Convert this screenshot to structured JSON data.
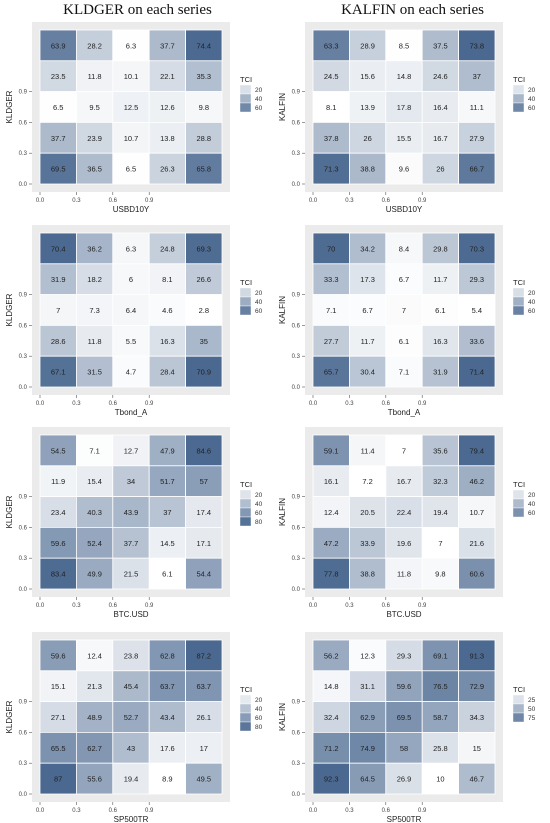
{
  "titles": [
    "KLDGER on each series",
    "KALFIN on each series"
  ],
  "legend_title": "TCI",
  "colors": {
    "low": "#ffffff",
    "high": "#4a6890",
    "panel_bg": "#ebebeb",
    "grid": "#ffffff",
    "text": "#222222"
  },
  "chart_data": [
    {
      "type": "heatmap",
      "ylabel": "KLDGER",
      "xlabel": "USBD10Y",
      "x_ticks": [
        "0.0",
        "0.3",
        "0.6",
        "0.9"
      ],
      "y_ticks": [
        "0.0",
        "0.3",
        "0.6",
        "0.9"
      ],
      "legend_breaks": [
        20,
        40,
        60
      ],
      "zlim": [
        6,
        75
      ],
      "rows": [
        [
          63.9,
          28.2,
          6.3,
          37.7,
          74.4
        ],
        [
          23.5,
          11.8,
          10.1,
          22.1,
          35.3
        ],
        [
          6.5,
          9.5,
          12.5,
          12.6,
          9.8
        ],
        [
          37.7,
          23.9,
          10.7,
          13.8,
          28.8
        ],
        [
          69.5,
          36.5,
          6.5,
          26.3,
          65.8
        ]
      ]
    },
    {
      "type": "heatmap",
      "ylabel": "KALFIN",
      "xlabel": "USBD10Y",
      "x_ticks": [
        "0.0",
        "0.3",
        "0.6",
        "0.9"
      ],
      "y_ticks": [
        "0.0",
        "0.3",
        "0.6",
        "0.9"
      ],
      "legend_breaks": [
        20,
        40,
        60
      ],
      "zlim": [
        8,
        74
      ],
      "rows": [
        [
          63.3,
          28.9,
          8.5,
          37.5,
          73.8
        ],
        [
          24.5,
          15.6,
          14.8,
          24.6,
          37
        ],
        [
          8.1,
          13.9,
          17.8,
          16.4,
          11.1
        ],
        [
          37.8,
          26,
          15.5,
          16.7,
          27.9
        ],
        [
          71.3,
          38.8,
          9.6,
          26,
          66.7
        ]
      ]
    },
    {
      "type": "heatmap",
      "ylabel": "KLDGER",
      "xlabel": "Tbond_A",
      "x_ticks": [
        "0.0",
        "0.3",
        "0.6",
        "0.9"
      ],
      "y_ticks": [
        "0.0",
        "0.3",
        "0.6",
        "0.9"
      ],
      "legend_breaks": [
        20,
        40,
        60
      ],
      "zlim": [
        2.8,
        71
      ],
      "rows": [
        [
          70.4,
          36.2,
          6.3,
          24.8,
          69.3
        ],
        [
          31.9,
          18.2,
          6,
          8.1,
          26.6
        ],
        [
          7,
          7.3,
          6.4,
          4.6,
          2.8
        ],
        [
          28.6,
          11.8,
          5.5,
          16.3,
          35
        ],
        [
          67.1,
          31.5,
          4.7,
          28.4,
          70.9
        ]
      ]
    },
    {
      "type": "heatmap",
      "ylabel": "KALFIN",
      "xlabel": "Tbond_A",
      "x_ticks": [
        "0.0",
        "0.3",
        "0.6",
        "0.9"
      ],
      "y_ticks": [
        "0.0",
        "0.3",
        "0.6",
        "0.9"
      ],
      "legend_breaks": [
        20,
        40,
        60
      ],
      "zlim": [
        5.4,
        71.4
      ],
      "rows": [
        [
          70,
          34.2,
          8.4,
          29.8,
          70.3
        ],
        [
          33.3,
          17.3,
          6.7,
          11.7,
          29.3
        ],
        [
          7.1,
          6.7,
          7,
          6.1,
          5.4
        ],
        [
          27.7,
          11.7,
          6.1,
          16.3,
          33.6
        ],
        [
          65.7,
          30.4,
          7.1,
          31.9,
          71.4
        ]
      ]
    },
    {
      "type": "heatmap",
      "ylabel": "KLDGER",
      "xlabel": "BTC.USD",
      "x_ticks": [
        "0.0",
        "0.3",
        "0.6",
        "0.9"
      ],
      "y_ticks": [
        "0.0",
        "0.3",
        "0.6",
        "0.9"
      ],
      "legend_breaks": [
        20,
        40,
        60,
        80
      ],
      "zlim": [
        6,
        85
      ],
      "rows": [
        [
          54.5,
          7.1,
          12.7,
          47.9,
          84.6
        ],
        [
          11.9,
          15.4,
          34,
          51.7,
          57
        ],
        [
          23.4,
          40.3,
          43.9,
          37,
          17.4
        ],
        [
          59.6,
          52.4,
          37.7,
          14.5,
          17.1
        ],
        [
          83.4,
          49.9,
          21.5,
          6.1,
          54.4
        ]
      ]
    },
    {
      "type": "heatmap",
      "ylabel": "KALFIN",
      "xlabel": "BTC.USD",
      "x_ticks": [
        "0.0",
        "0.3",
        "0.6",
        "0.9"
      ],
      "y_ticks": [
        "0.0",
        "0.3",
        "0.6",
        "0.9"
      ],
      "legend_breaks": [
        20,
        40,
        60
      ],
      "zlim": [
        7,
        80
      ],
      "rows": [
        [
          59.1,
          11.4,
          7,
          35.6,
          79.4
        ],
        [
          16.1,
          7.2,
          16.7,
          32.3,
          46.2
        ],
        [
          12.4,
          20.5,
          22.4,
          19.4,
          10.7
        ],
        [
          47.2,
          33.9,
          19.6,
          7,
          21.6
        ],
        [
          77.8,
          38.8,
          11.8,
          9.8,
          60.6
        ]
      ]
    },
    {
      "type": "heatmap",
      "ylabel": "KLDGER",
      "xlabel": "SP500TR",
      "x_ticks": [
        "0.0",
        "0.3",
        "0.6",
        "0.9"
      ],
      "y_ticks": [
        "0.0",
        "0.3",
        "0.6",
        "0.9"
      ],
      "legend_breaks": [
        20,
        40,
        60,
        80
      ],
      "zlim": [
        8.9,
        87.2
      ],
      "rows": [
        [
          59.6,
          12.4,
          23.8,
          62.8,
          87.2
        ],
        [
          15.1,
          21.3,
          45.4,
          63.7,
          63.7
        ],
        [
          27.1,
          48.9,
          52.7,
          43.4,
          26.1
        ],
        [
          65.5,
          62.7,
          43,
          17.6,
          17
        ],
        [
          87,
          55.6,
          19.4,
          8.9,
          49.5
        ]
      ]
    },
    {
      "type": "heatmap",
      "ylabel": "KALFIN",
      "xlabel": "SP500TR",
      "x_ticks": [
        "0.0",
        "0.3",
        "0.6",
        "0.9"
      ],
      "y_ticks": [
        "0.0",
        "0.3",
        "0.6",
        "0.9"
      ],
      "legend_breaks": [
        25,
        50,
        75
      ],
      "zlim": [
        10,
        92.3
      ],
      "rows": [
        [
          56.2,
          12.3,
          29.3,
          69.1,
          91.3
        ],
        [
          14.8,
          31.1,
          59.6,
          76.5,
          72.9
        ],
        [
          32.4,
          62.9,
          69.5,
          58.7,
          34.3
        ],
        [
          71.2,
          74.9,
          58,
          25.8,
          15
        ],
        [
          92.3,
          64.5,
          26.9,
          10,
          46.7
        ]
      ]
    }
  ]
}
